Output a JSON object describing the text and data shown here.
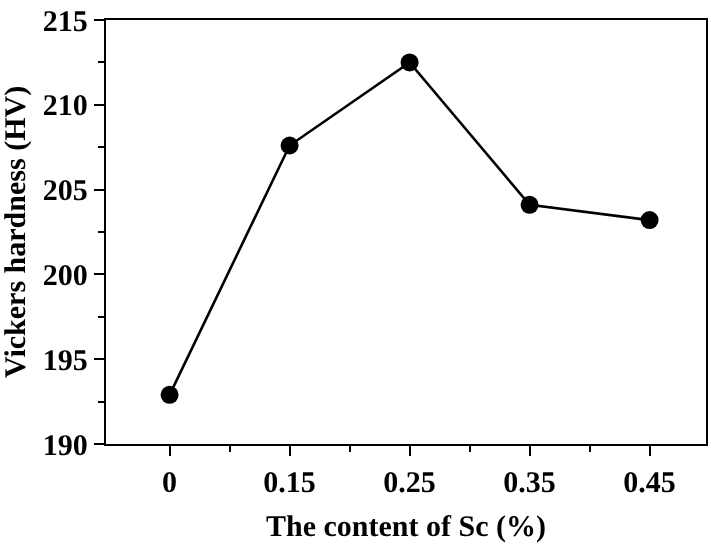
{
  "chart_data": {
    "type": "line",
    "xlabel": "The content of Sc (%)",
    "ylabel": "Vickers hardness (HV)",
    "categories": [
      "0",
      "0.15",
      "0.25",
      "0.35",
      "0.45"
    ],
    "series": [
      {
        "color": "#000000",
        "values": [
          192.9,
          207.6,
          212.5,
          204.1,
          203.2
        ]
      }
    ],
    "ylim": [
      190,
      215
    ],
    "yticks": [
      190,
      195,
      200,
      205,
      210,
      215
    ],
    "marker": "circle",
    "line_style": "solid"
  }
}
